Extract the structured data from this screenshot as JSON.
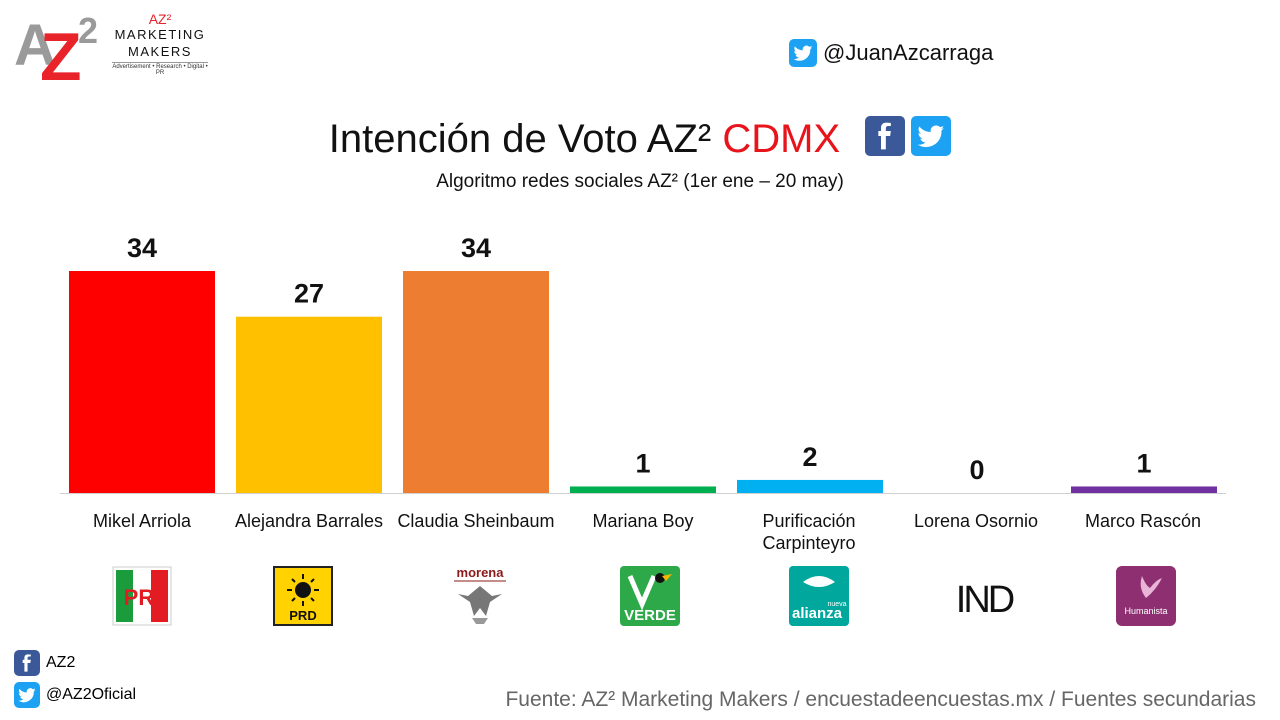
{
  "logo": {
    "mark": "AZ",
    "sup": "2",
    "az2": "AZ²",
    "brand_line1": "MARKETING",
    "brand_line2": "MAKERS",
    "tagline": "Advertisement • Research • Digital • PR"
  },
  "handle_top": "@JuanAzcarraga",
  "title": {
    "part1": "Intención de Voto AZ² ",
    "part2": "CDMX"
  },
  "subtitle": "Algoritmo redes sociales AZ² (1er ene – 20 may)",
  "chart_data": {
    "type": "bar",
    "title": "Intención de Voto AZ² CDMX",
    "subtitle": "Algoritmo redes sociales AZ² (1er ene – 20 may)",
    "categories": [
      "Mikel Arriola",
      "Alejandra Barrales",
      "Claudia Sheinbaum",
      "Mariana Boy",
      "Purificación Carpinteyro",
      "Lorena Osornio",
      "Marco Rascón"
    ],
    "values": [
      34,
      27,
      34,
      1,
      2,
      0,
      1
    ],
    "colors": [
      "#ff0000",
      "#ffc000",
      "#ed7d31",
      "#00b050",
      "#00b0f0",
      "#000000",
      "#7030a0"
    ],
    "ylim": [
      0,
      34
    ],
    "grid": false,
    "legend": "none",
    "data_labels": true
  },
  "candidates": [
    {
      "line1": "Mikel Arriola",
      "line2": ""
    },
    {
      "line1": "Alejandra Barrales",
      "line2": ""
    },
    {
      "line1": "Claudia Sheinbaum",
      "line2": ""
    },
    {
      "line1": "Mariana Boy",
      "line2": ""
    },
    {
      "line1": "Purificación",
      "line2": "Carpinteyro"
    },
    {
      "line1": "Lorena Osornio",
      "line2": ""
    },
    {
      "line1": "Marco Rascón",
      "line2": ""
    }
  ],
  "parties": [
    {
      "label": "PRI",
      "icon": "pri-logo-icon"
    },
    {
      "label": "PRD",
      "icon": "prd-logo-icon"
    },
    {
      "label": "morena",
      "icon": "morena-logo-icon"
    },
    {
      "label": "VERDE",
      "icon": "verde-logo-icon"
    },
    {
      "label": "alianza",
      "sub": "nueva",
      "icon": "nueva-alianza-logo-icon"
    },
    {
      "label": "IND",
      "icon": "independiente-logo-icon"
    },
    {
      "label": "Humanista",
      "icon": "humanista-logo-icon"
    }
  ],
  "footer": {
    "facebook": "AZ2",
    "twitter": "@AZ2Oficial"
  },
  "source": "Fuente: AZ² Marketing Makers / encuestadeencuestas.mx / Fuentes secundarias"
}
